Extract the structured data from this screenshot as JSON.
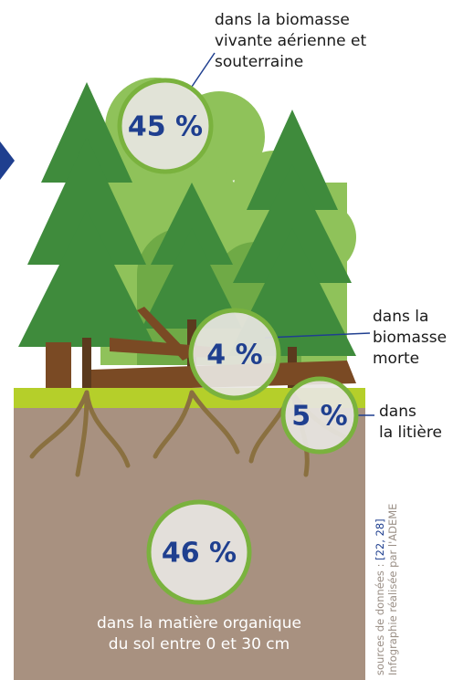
{
  "callouts": {
    "living": {
      "value_label": "45 %",
      "lines": [
        "dans la biomasse",
        "vivante aérienne et",
        "souterraine"
      ]
    },
    "dead": {
      "value_label": "4 %",
      "lines": [
        "dans la",
        "biomasse",
        "morte"
      ]
    },
    "litter": {
      "value_label": "5 %",
      "lines": [
        "dans",
        "la litière"
      ]
    },
    "soil": {
      "value_label": "46 %",
      "lines": [
        "dans la matière organique",
        "du sol entre 0 et 30 cm"
      ]
    }
  },
  "credits": {
    "sources_prefix": "sources de données : ",
    "sources_refs": "[22, 28]",
    "author": "Infographie réalisée par l'ADEME"
  }
}
